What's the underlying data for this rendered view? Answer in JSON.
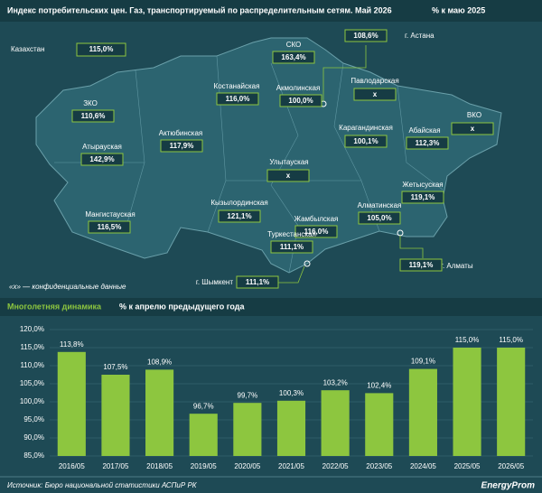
{
  "header": {
    "title": "Индекс потребительских цен. Газ, транспортируемый по распределительным сетям. Май 2026",
    "unit": "% к маю 2025"
  },
  "map": {
    "country": {
      "name": "Казахстан",
      "value": "115,0%"
    },
    "regions": [
      {
        "name": "СКО",
        "value": "163,4%"
      },
      {
        "name": "г. Астана",
        "value": "108,6%"
      },
      {
        "name": "Костанайская",
        "value": "116,0%"
      },
      {
        "name": "Акмолинская",
        "value": "100,0%"
      },
      {
        "name": "Павлодарская",
        "value": "x"
      },
      {
        "name": "ЗКО",
        "value": "110,6%"
      },
      {
        "name": "ВКО",
        "value": "x"
      },
      {
        "name": "Актюбинская",
        "value": "117,9%"
      },
      {
        "name": "Карагандинская",
        "value": "100,1%"
      },
      {
        "name": "Абайская",
        "value": "112,3%"
      },
      {
        "name": "Атырауская",
        "value": "142,9%"
      },
      {
        "name": "Улытауская",
        "value": "x"
      },
      {
        "name": "Жетысуская",
        "value": "119,1%"
      },
      {
        "name": "Кызылординская",
        "value": "121,1%"
      },
      {
        "name": "Алматинская",
        "value": "105,0%"
      },
      {
        "name": "Мангистауская",
        "value": "116,5%"
      },
      {
        "name": "Жамбылская",
        "value": "116,0%"
      },
      {
        "name": "Туркестанская",
        "value": "111,1%"
      },
      {
        "name": "г. Алматы",
        "value": "119,1%"
      },
      {
        "name": "г. Шымкент",
        "value": "111,1%"
      }
    ],
    "note": "«х» — конфиденциальные данные"
  },
  "chart_data": {
    "type": "bar",
    "title": "Многолетняя динамика",
    "subtitle": "% к апрелю предыдущего года",
    "categories": [
      "2016/05",
      "2017/05",
      "2018/05",
      "2019/05",
      "2020/05",
      "2021/05",
      "2022/05",
      "2023/05",
      "2024/05",
      "2025/05",
      "2026/05"
    ],
    "values": [
      113.8,
      107.5,
      108.9,
      96.7,
      99.7,
      100.3,
      103.2,
      102.4,
      109.1,
      115.0,
      115.0
    ],
    "value_labels": [
      "113,8%",
      "107,5%",
      "108,9%",
      "96,7%",
      "99,7%",
      "100,3%",
      "103,2%",
      "102,4%",
      "109,1%",
      "115,0%",
      "115,0%"
    ],
    "color": "#8dc63f",
    "ylim": [
      85,
      120
    ],
    "yticks": [
      {
        "value": 85,
        "label": "85,0%"
      },
      {
        "value": 90,
        "label": "90,0%"
      },
      {
        "value": 95,
        "label": "95,0%"
      },
      {
        "value": 100,
        "label": "100,0%"
      },
      {
        "value": 105,
        "label": "105,0%"
      },
      {
        "value": 110,
        "label": "110,0%"
      },
      {
        "value": 115,
        "label": "115,0%"
      },
      {
        "value": 120,
        "label": "120,0%"
      }
    ],
    "grid": true
  },
  "source": "Источник: Бюро национальной статистики АСПиР РК",
  "logo": "EnergyProm"
}
